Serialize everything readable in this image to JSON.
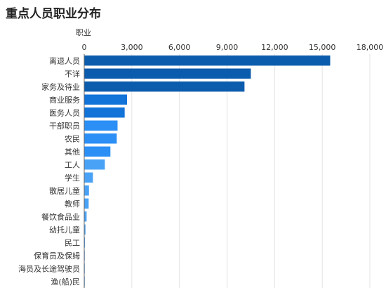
{
  "chart_data": {
    "type": "bar",
    "orientation": "horizontal",
    "title": "重点人员职业分布",
    "ylabel": "职业",
    "xlim": [
      0,
      18000
    ],
    "x_ticks": [
      "0",
      "3,000",
      "6,000",
      "9,000",
      "12,000",
      "15,000",
      "18,000"
    ],
    "x_axis_position": "top",
    "grid": true,
    "categories": [
      "离退人员",
      "不详",
      "家务及待业",
      "商业服务",
      "医务人员",
      "干部职员",
      "农民",
      "其他",
      "工人",
      "学生",
      "散居儿童",
      "教师",
      "餐饮食品业",
      "幼托儿童",
      "民工",
      "保育员及保姆",
      "海员及长途驾驶员",
      "渔(船)民"
    ],
    "values": [
      15500,
      10500,
      10100,
      2700,
      2550,
      2100,
      2050,
      1650,
      1300,
      550,
      300,
      280,
      150,
      80,
      50,
      20,
      10,
      5
    ],
    "colors": [
      "#0b5cad",
      "#0b5cad",
      "#0b5cad",
      "#1273d8",
      "#1273d8",
      "#2b8ff5",
      "#2b8ff5",
      "#2b8ff5",
      "#4aa2f7",
      "#4aa2f7",
      "#4aa2f7",
      "#4aa2f7",
      "#4aa2f7",
      "#4aa2f7",
      "#4aa2f7",
      "#4aa2f7",
      "#4aa2f7",
      "#4aa2f7"
    ]
  }
}
